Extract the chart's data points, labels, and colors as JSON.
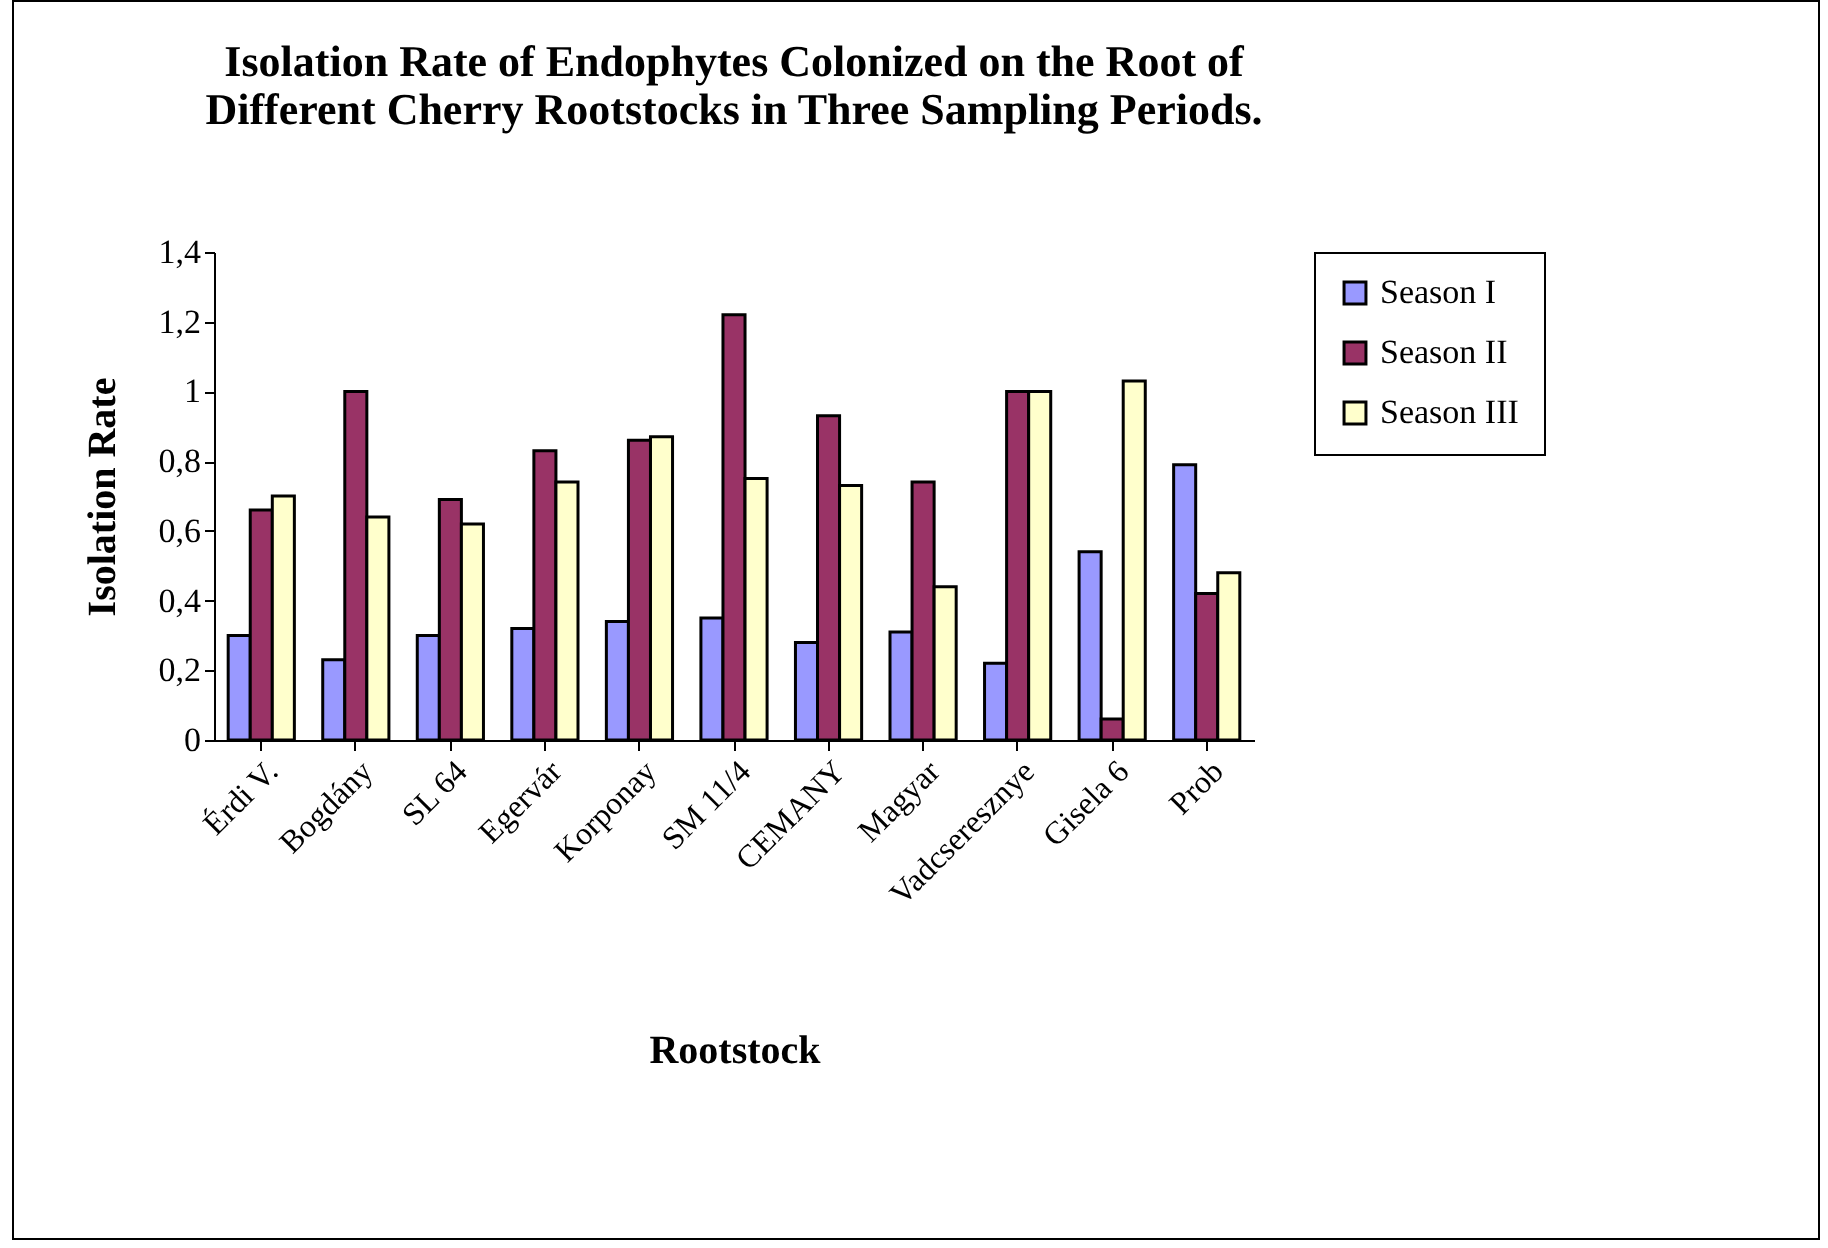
{
  "chart_data": {
    "type": "bar",
    "title": [
      "Isolation Rate of Endophytes Colonized on the Root of",
      "Different Cherry Rootstocks in Three Sampling Periods."
    ],
    "xlabel": "Rootstock",
    "ylabel": "Isolation Rate",
    "categories": [
      "Érdi V.",
      "Bogdány",
      "SL 64",
      "Egervár",
      "Korponay",
      "SM 11/4",
      "CEMANY",
      "Magyar",
      "Vadcseresznye",
      "Gisela 6",
      "Prob"
    ],
    "series": [
      {
        "name": "Season I",
        "color": "#9999ff",
        "values": [
          0.3,
          0.23,
          0.3,
          0.32,
          0.34,
          0.35,
          0.28,
          0.31,
          0.22,
          0.54,
          0.79
        ]
      },
      {
        "name": "Season II",
        "color": "#993366",
        "values": [
          0.66,
          1.0,
          0.69,
          0.83,
          0.86,
          1.22,
          0.93,
          0.74,
          1.0,
          0.06,
          0.42
        ]
      },
      {
        "name": "Season III",
        "color": "#ffffcc",
        "values": [
          0.7,
          0.64,
          0.62,
          0.74,
          0.87,
          0.75,
          0.73,
          0.44,
          1.0,
          1.03,
          0.48
        ]
      }
    ],
    "ylim": [
      0,
      1.4
    ],
    "yticks": [
      0,
      {
        "value": 0.2,
        "label": "0,2"
      },
      {
        "value": 0.4,
        "label": "0,4"
      },
      {
        "value": 0.6,
        "label": "0,6"
      },
      {
        "value": 0.8,
        "label": "0,8"
      },
      1,
      {
        "value": 1.2,
        "label": "1,2"
      },
      {
        "value": 1.4,
        "label": "1,4"
      }
    ],
    "grid": false,
    "legend": "right"
  }
}
